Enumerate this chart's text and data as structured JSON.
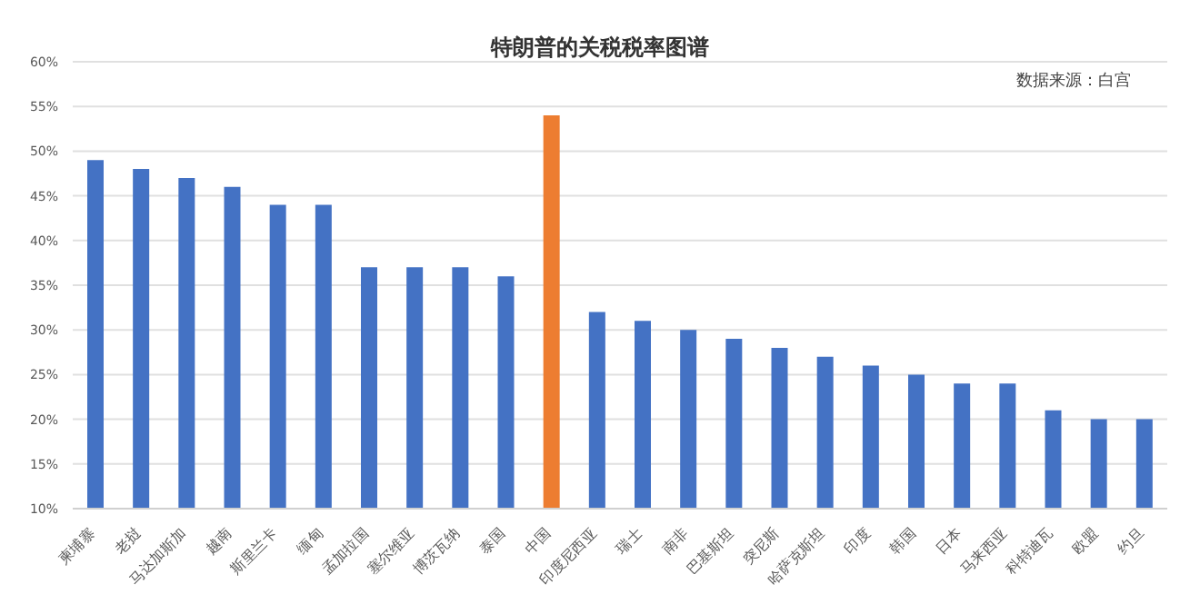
{
  "chart_data": {
    "type": "bar",
    "title": "特朗普的关税税率图谱",
    "categories": [
      "柬埔寨",
      "老挝",
      "马达加斯加",
      "越南",
      "斯里兰卡",
      "缅甸",
      "孟加拉国",
      "塞尔维亚",
      "博茨瓦纳",
      "泰国",
      "中国",
      "印度尼西亚",
      "瑞士",
      "南非",
      "巴基斯坦",
      "突尼斯",
      "哈萨克斯坦",
      "印度",
      "韩国",
      "日本",
      "马来西亚",
      "科特迪瓦",
      "欧盟",
      "约旦"
    ],
    "values": [
      49,
      48,
      47,
      46,
      44,
      44,
      37,
      37,
      37,
      36,
      54,
      32,
      31,
      30,
      29,
      28,
      27,
      26,
      25,
      24,
      24,
      21,
      20,
      20
    ],
    "colors": [
      "#4472c4",
      "#4472c4",
      "#4472c4",
      "#4472c4",
      "#4472c4",
      "#4472c4",
      "#4472c4",
      "#4472c4",
      "#4472c4",
      "#4472c4",
      "#ed7d31",
      "#4472c4",
      "#4472c4",
      "#4472c4",
      "#4472c4",
      "#4472c4",
      "#4472c4",
      "#4472c4",
      "#4472c4",
      "#4472c4",
      "#4472c4",
      "#4472c4",
      "#4472c4",
      "#4472c4"
    ],
    "ylim": [
      10,
      60
    ],
    "yticks": [
      {
        "value": 10,
        "label": "10%"
      },
      {
        "value": 15,
        "label": "15%"
      },
      {
        "value": 20,
        "label": "20%"
      },
      {
        "value": 25,
        "label": "25%"
      },
      {
        "value": 30,
        "label": "30%"
      },
      {
        "value": 35,
        "label": "35%"
      },
      {
        "value": 40,
        "label": "40%"
      },
      {
        "value": 45,
        "label": "45%"
      },
      {
        "value": 50,
        "label": "50%"
      },
      {
        "value": 55,
        "label": "55%"
      },
      {
        "value": 60,
        "label": "60%"
      }
    ],
    "grid": "y",
    "annotations": [
      "数据来源：白宫"
    ]
  }
}
